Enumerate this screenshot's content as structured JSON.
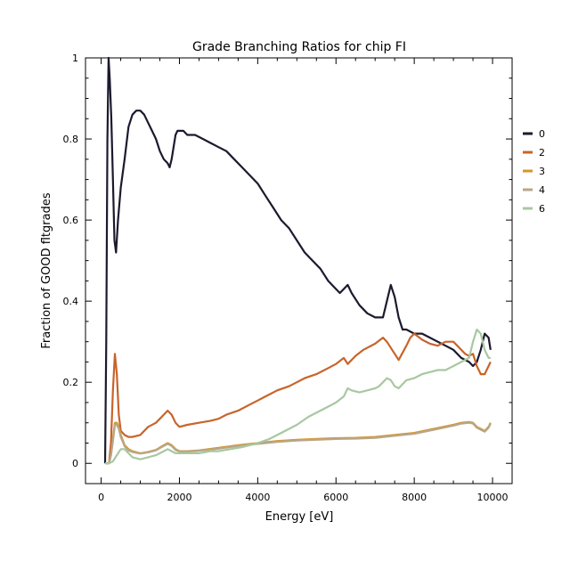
{
  "chart_data": {
    "type": "line",
    "title": "Grade Branching Ratios for chip FI",
    "xlabel": "Energy [eV]",
    "ylabel": "Fraction of GOOD fltgrades",
    "xlim": [
      -400,
      10500
    ],
    "ylim": [
      -0.05,
      1.0
    ],
    "xticks": [
      0,
      2000,
      4000,
      6000,
      8000,
      10000
    ],
    "xtick_labels": [
      "0",
      "2000",
      "4000",
      "6000",
      "8000",
      "10000"
    ],
    "yticks": [
      0,
      0.2,
      0.4,
      0.6,
      0.8,
      1
    ],
    "ytick_labels": [
      "0",
      "0.2",
      "0.4",
      "0.6",
      "0.8",
      "1"
    ],
    "grid": false,
    "legend_position": "right",
    "series": [
      {
        "name": "0",
        "color": "#1b1a2e",
        "x": [
          100,
          130,
          160,
          190,
          220,
          260,
          300,
          340,
          380,
          430,
          500,
          600,
          700,
          800,
          900,
          1000,
          1100,
          1200,
          1300,
          1400,
          1500,
          1600,
          1700,
          1750,
          1800,
          1850,
          1900,
          1950,
          2000,
          2100,
          2200,
          2400,
          2600,
          2800,
          3000,
          3200,
          3400,
          3600,
          3800,
          4000,
          4200,
          4400,
          4600,
          4800,
          5000,
          5200,
          5400,
          5600,
          5800,
          6000,
          6100,
          6200,
          6300,
          6400,
          6600,
          6800,
          7000,
          7200,
          7300,
          7400,
          7500,
          7600,
          7700,
          7800,
          8000,
          8200,
          8400,
          8600,
          8800,
          9000,
          9200,
          9400,
          9500,
          9600,
          9700,
          9800,
          9900,
          9950
        ],
        "y": [
          0.0,
          0.3,
          0.8,
          1.0,
          0.95,
          0.85,
          0.7,
          0.55,
          0.52,
          0.6,
          0.68,
          0.75,
          0.83,
          0.86,
          0.87,
          0.87,
          0.86,
          0.84,
          0.82,
          0.8,
          0.77,
          0.75,
          0.74,
          0.73,
          0.75,
          0.78,
          0.81,
          0.82,
          0.82,
          0.82,
          0.81,
          0.81,
          0.8,
          0.79,
          0.78,
          0.77,
          0.75,
          0.73,
          0.71,
          0.69,
          0.66,
          0.63,
          0.6,
          0.58,
          0.55,
          0.52,
          0.5,
          0.48,
          0.45,
          0.43,
          0.42,
          0.43,
          0.44,
          0.42,
          0.39,
          0.37,
          0.36,
          0.36,
          0.4,
          0.44,
          0.41,
          0.36,
          0.33,
          0.33,
          0.32,
          0.32,
          0.31,
          0.3,
          0.29,
          0.28,
          0.26,
          0.25,
          0.24,
          0.25,
          0.28,
          0.32,
          0.31,
          0.28
        ]
      },
      {
        "name": "2",
        "color": "#c8642a",
        "x": [
          100,
          150,
          200,
          250,
          300,
          350,
          400,
          450,
          500,
          600,
          700,
          800,
          1000,
          1200,
          1400,
          1600,
          1700,
          1800,
          1900,
          2000,
          2200,
          2500,
          2800,
          3000,
          3200,
          3500,
          3800,
          4000,
          4200,
          4500,
          4800,
          5000,
          5200,
          5500,
          5800,
          6000,
          6200,
          6300,
          6500,
          6700,
          7000,
          7200,
          7300,
          7500,
          7600,
          7800,
          7900,
          8000,
          8200,
          8400,
          8600,
          8800,
          9000,
          9100,
          9200,
          9300,
          9400,
          9500,
          9600,
          9700,
          9800,
          9900,
          9950
        ],
        "y": [
          0.0,
          0.0,
          0.0,
          0.05,
          0.18,
          0.27,
          0.22,
          0.12,
          0.08,
          0.07,
          0.065,
          0.065,
          0.07,
          0.09,
          0.1,
          0.12,
          0.13,
          0.12,
          0.1,
          0.09,
          0.095,
          0.1,
          0.105,
          0.11,
          0.12,
          0.13,
          0.145,
          0.155,
          0.165,
          0.18,
          0.19,
          0.2,
          0.21,
          0.22,
          0.235,
          0.245,
          0.26,
          0.245,
          0.265,
          0.28,
          0.295,
          0.31,
          0.3,
          0.27,
          0.255,
          0.29,
          0.31,
          0.32,
          0.305,
          0.295,
          0.29,
          0.3,
          0.3,
          0.29,
          0.28,
          0.27,
          0.265,
          0.27,
          0.24,
          0.22,
          0.22,
          0.24,
          0.25
        ]
      },
      {
        "name": "3",
        "color": "#d4962a",
        "x": [
          100,
          150,
          200,
          250,
          300,
          350,
          400,
          450,
          500,
          600,
          700,
          800,
          1000,
          1200,
          1400,
          1600,
          1700,
          1800,
          1900,
          2000,
          2200,
          2500,
          3000,
          3500,
          4000,
          4500,
          5000,
          5500,
          6000,
          6500,
          7000,
          7500,
          8000,
          8500,
          9000,
          9200,
          9400,
          9500,
          9600,
          9700,
          9800,
          9900,
          9950
        ],
        "y": [
          0.0,
          0.0,
          0.0,
          0.02,
          0.06,
          0.1,
          0.1,
          0.09,
          0.07,
          0.045,
          0.035,
          0.03,
          0.025,
          0.028,
          0.033,
          0.045,
          0.05,
          0.045,
          0.035,
          0.03,
          0.03,
          0.032,
          0.038,
          0.045,
          0.05,
          0.055,
          0.058,
          0.06,
          0.062,
          0.063,
          0.065,
          0.07,
          0.075,
          0.085,
          0.095,
          0.1,
          0.102,
          0.1,
          0.09,
          0.085,
          0.08,
          0.09,
          0.1
        ]
      },
      {
        "name": "4",
        "color": "#b8a68a",
        "x": [
          100,
          150,
          200,
          250,
          300,
          350,
          400,
          450,
          500,
          600,
          700,
          800,
          1000,
          1200,
          1400,
          1600,
          1700,
          1800,
          1900,
          2000,
          2200,
          2500,
          3000,
          3500,
          4000,
          4500,
          5000,
          5500,
          6000,
          6500,
          7000,
          7500,
          8000,
          8500,
          9000,
          9200,
          9400,
          9500,
          9600,
          9700,
          9800,
          9900,
          9950
        ],
        "y": [
          0.0,
          0.0,
          0.0,
          0.02,
          0.055,
          0.095,
          0.095,
          0.085,
          0.065,
          0.042,
          0.032,
          0.028,
          0.024,
          0.027,
          0.032,
          0.043,
          0.048,
          0.043,
          0.033,
          0.029,
          0.029,
          0.031,
          0.036,
          0.043,
          0.048,
          0.053,
          0.056,
          0.058,
          0.06,
          0.061,
          0.063,
          0.068,
          0.073,
          0.083,
          0.093,
          0.098,
          0.1,
          0.098,
          0.088,
          0.083,
          0.078,
          0.088,
          0.098
        ]
      },
      {
        "name": "6",
        "color": "#a8c8a0",
        "x": [
          100,
          200,
          300,
          400,
          500,
          600,
          700,
          800,
          1000,
          1200,
          1400,
          1600,
          1700,
          1800,
          1900,
          2000,
          2200,
          2500,
          2800,
          3000,
          3300,
          3600,
          4000,
          4300,
          4600,
          5000,
          5300,
          5600,
          6000,
          6200,
          6300,
          6400,
          6600,
          6800,
          7000,
          7100,
          7200,
          7300,
          7400,
          7500,
          7600,
          7800,
          8000,
          8200,
          8400,
          8600,
          8800,
          9000,
          9200,
          9400,
          9500,
          9600,
          9700,
          9800,
          9900,
          9950
        ],
        "y": [
          0.0,
          0.0,
          0.005,
          0.02,
          0.035,
          0.035,
          0.025,
          0.015,
          0.01,
          0.015,
          0.02,
          0.03,
          0.035,
          0.03,
          0.025,
          0.025,
          0.025,
          0.025,
          0.03,
          0.03,
          0.035,
          0.04,
          0.05,
          0.06,
          0.075,
          0.095,
          0.115,
          0.13,
          0.15,
          0.165,
          0.185,
          0.18,
          0.175,
          0.18,
          0.185,
          0.19,
          0.2,
          0.21,
          0.205,
          0.19,
          0.185,
          0.205,
          0.21,
          0.22,
          0.225,
          0.23,
          0.23,
          0.24,
          0.25,
          0.26,
          0.3,
          0.33,
          0.32,
          0.28,
          0.26,
          0.26
        ]
      }
    ]
  }
}
